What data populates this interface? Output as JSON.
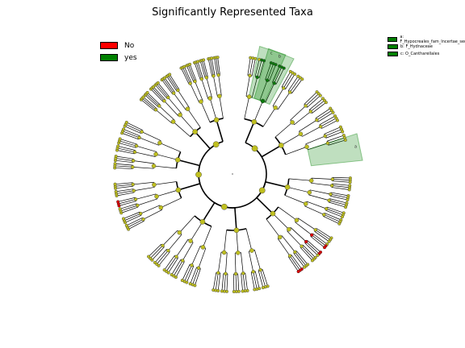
{
  "chart_data": {
    "type": "cladogram",
    "title": "Significantly Represented Taxa",
    "legend_main": [
      {
        "label": "No",
        "color": "#ff0000"
      },
      {
        "label": "yes",
        "color": "#008000"
      }
    ],
    "legend_clades": [
      {
        "label": "a: F_Hypocreales_fam_Incertae_sedis",
        "color": "#008000"
      },
      {
        "label": "b: F_Hydnaceae",
        "color": "#008000"
      },
      {
        "label": "c: O_Cantharellales",
        "color": "#008000"
      }
    ],
    "clade_letters": [
      "a",
      "b",
      "c"
    ],
    "node_colors": {
      "neutral": "#bfbf1f",
      "no": "#e00000",
      "yes": "#0a7a0a"
    },
    "highlights": [
      {
        "letter": "a",
        "group": "yes",
        "angle": 78
      },
      {
        "letter": "c",
        "group": "yes",
        "angle": 18
      },
      {
        "letter": "b",
        "group": "yes",
        "angle": 22
      }
    ],
    "red_branch_angle": 130,
    "red_leaf_angles": [
      255,
      145,
      80
    ]
  }
}
